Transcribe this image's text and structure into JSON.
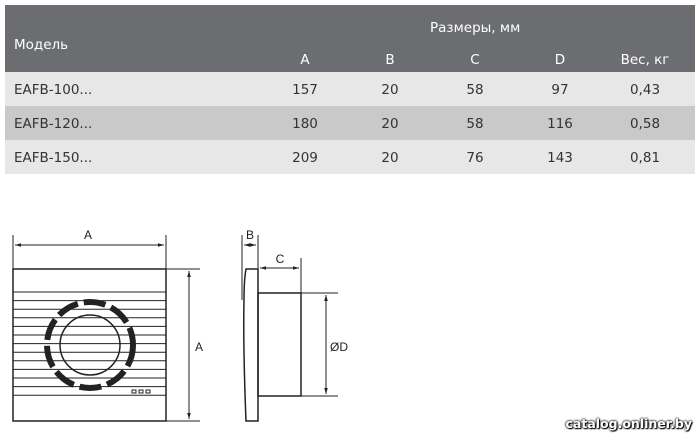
{
  "table": {
    "header": {
      "model": "Модель",
      "group": "Размеры, мм",
      "columns": [
        "A",
        "B",
        "C",
        "D",
        "Вес, кг"
      ]
    },
    "rows": [
      {
        "model": "EAFB-100...",
        "values": [
          "157",
          "20",
          "58",
          "97",
          "0,43"
        ]
      },
      {
        "model": "EAFB-120...",
        "values": [
          "180",
          "20",
          "58",
          "116",
          "0,58"
        ]
      },
      {
        "model": "EAFB-150...",
        "values": [
          "209",
          "20",
          "76",
          "143",
          "0,81"
        ]
      }
    ],
    "colors": {
      "header_bg": "#6c6d71",
      "row_light": "#e7e7e7",
      "row_dark": "#c9c9ca"
    }
  },
  "drawing": {
    "labels": {
      "front_width": "A",
      "front_height": "A",
      "depth_b": "B",
      "depth_c": "C",
      "diameter": "ØD"
    }
  },
  "watermark": "catalog.onliner.by"
}
